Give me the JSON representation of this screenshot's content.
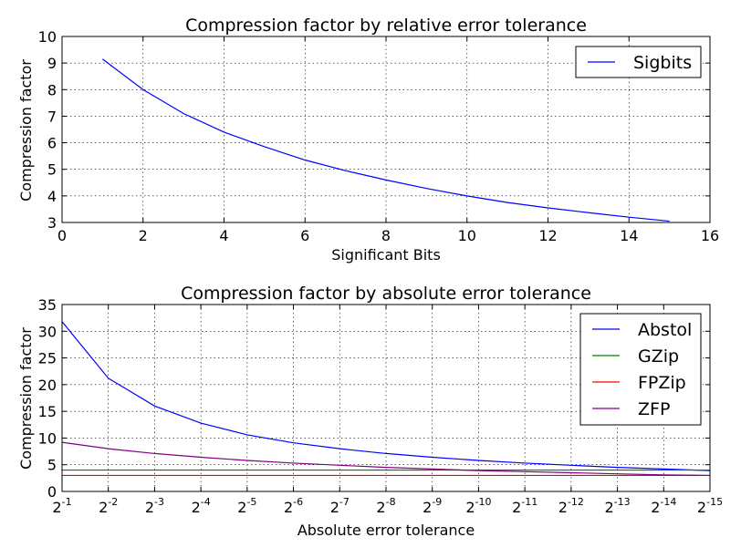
{
  "chart_data": [
    {
      "type": "line",
      "title": "Compression factor by relative error tolerance",
      "xlabel": "Significant Bits",
      "ylabel": "Compression factor",
      "xlim": [
        0,
        16
      ],
      "ylim": [
        3,
        10
      ],
      "xticks": [
        0,
        2,
        4,
        6,
        8,
        10,
        12,
        14,
        16
      ],
      "yticks": [
        3,
        4,
        5,
        6,
        7,
        8,
        9,
        10
      ],
      "xtick_labels": [
        "0",
        "2",
        "4",
        "6",
        "8",
        "10",
        "12",
        "14",
        "16"
      ],
      "ytick_labels": [
        "3",
        "4",
        "5",
        "6",
        "7",
        "8",
        "9",
        "10"
      ],
      "grid": true,
      "legend_position": "top-right",
      "series": [
        {
          "name": "Sigbits",
          "color": "#0000ff",
          "x": [
            1,
            2,
            3,
            4,
            5,
            6,
            7,
            8,
            9,
            10,
            11,
            12,
            13,
            14,
            15
          ],
          "y": [
            9.15,
            8.0,
            7.1,
            6.4,
            5.85,
            5.35,
            4.95,
            4.6,
            4.28,
            4.0,
            3.75,
            3.55,
            3.37,
            3.2,
            3.05
          ]
        }
      ]
    },
    {
      "type": "line",
      "title": "Compression factor by absolute error tolerance",
      "xlabel": "Absolute error tolerance",
      "ylabel": "Compression factor",
      "x_scale": "log2",
      "xlim": [
        -1,
        -15
      ],
      "ylim": [
        0,
        35
      ],
      "xticks": [
        -1,
        -2,
        -3,
        -4,
        -5,
        -6,
        -7,
        -8,
        -9,
        -10,
        -11,
        -12,
        -13,
        -14,
        -15
      ],
      "yticks": [
        0,
        5,
        10,
        15,
        20,
        25,
        30,
        35
      ],
      "xtick_base": "2",
      "xtick_exponents": [
        "-1",
        "-2",
        "-3",
        "-4",
        "-5",
        "-6",
        "-7",
        "-8",
        "-9",
        "-10",
        "-11",
        "-12",
        "-13",
        "-14",
        "-15"
      ],
      "ytick_labels": [
        "0",
        "5",
        "10",
        "15",
        "20",
        "25",
        "30",
        "35"
      ],
      "grid": true,
      "legend_position": "top-right",
      "series": [
        {
          "name": "Abstol",
          "color": "#0000ff",
          "x": [
            -1,
            -2,
            -3,
            -4,
            -5,
            -6,
            -7,
            -8,
            -9,
            -10,
            -11,
            -12,
            -13,
            -14,
            -15
          ],
          "y": [
            31.8,
            21.2,
            16.0,
            12.8,
            10.6,
            9.1,
            8.0,
            7.1,
            6.4,
            5.8,
            5.3,
            4.9,
            4.5,
            4.2,
            3.9
          ]
        },
        {
          "name": "GZip",
          "color": "#008000",
          "x": [
            -1,
            -15
          ],
          "y": [
            4.0,
            4.0
          ]
        },
        {
          "name": "FPZip",
          "color": "#ff0000",
          "x": [
            -1,
            -15
          ],
          "y": [
            3.0,
            3.0
          ]
        },
        {
          "name": "ZFP",
          "color": "#800080",
          "x": [
            -1,
            -2,
            -3,
            -4,
            -5,
            -6,
            -7,
            -8,
            -9,
            -10,
            -11,
            -12,
            -13,
            -14,
            -15
          ],
          "y": [
            9.2,
            8.0,
            7.1,
            6.4,
            5.8,
            5.3,
            4.9,
            4.5,
            4.2,
            3.9,
            3.7,
            3.5,
            3.3,
            3.1,
            3.0
          ]
        }
      ]
    }
  ]
}
